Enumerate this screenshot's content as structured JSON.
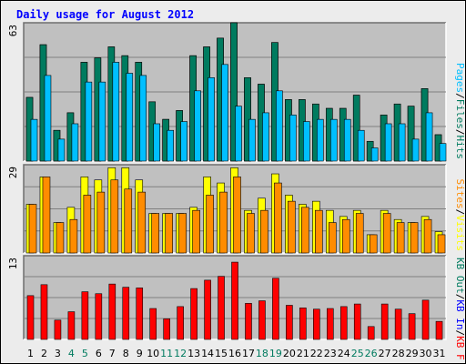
{
  "title": "Daily usage for August 2012",
  "colors": {
    "background": "#ececec",
    "plot": "#c0c0c0",
    "grid": "#808080",
    "pages": "#00bfff",
    "files": "#007b5f",
    "hits": "#007b5f",
    "visits": "#ffff00",
    "sites": "#ff8c00",
    "kb_f": "#ff0000",
    "kb_in": "#0000ff",
    "kb_out": "#007b5f",
    "title": "#0000ff",
    "weekend": "#007b5f",
    "weekday": "#000000"
  },
  "chart_data": [
    {
      "type": "bar",
      "panel": "top",
      "ymax_label": "63",
      "ylim": [
        0,
        63
      ],
      "categories": [
        "1",
        "2",
        "3",
        "4",
        "5",
        "6",
        "7",
        "8",
        "9",
        "10",
        "11",
        "12",
        "13",
        "14",
        "15",
        "16",
        "17",
        "18",
        "19",
        "20",
        "21",
        "22",
        "23",
        "24",
        "25",
        "26",
        "27",
        "28",
        "29",
        "30",
        "31"
      ],
      "weekend_days": [
        4,
        5,
        11,
        12,
        18,
        19,
        25,
        26
      ],
      "series": [
        {
          "name": "Hits",
          "values": [
            29,
            53,
            14,
            22,
            45,
            47,
            52,
            48,
            45,
            27,
            19,
            23,
            48,
            52,
            56,
            63,
            38,
            35,
            54,
            28,
            28,
            26,
            24,
            24,
            30,
            9,
            21,
            26,
            25,
            33,
            12
          ]
        },
        {
          "name": "Files",
          "values": [
            29,
            53,
            14,
            22,
            45,
            47,
            52,
            48,
            45,
            27,
            19,
            23,
            48,
            52,
            56,
            63,
            38,
            35,
            54,
            28,
            28,
            26,
            24,
            24,
            30,
            9,
            21,
            26,
            25,
            33,
            12
          ]
        },
        {
          "name": "Pages",
          "values": [
            19,
            39,
            10,
            17,
            36,
            36,
            45,
            40,
            39,
            17,
            14,
            18,
            32,
            38,
            44,
            25,
            19,
            22,
            32,
            21,
            18,
            19,
            19,
            19,
            14,
            6,
            17,
            17,
            10,
            22,
            8
          ]
        }
      ],
      "legend": [
        {
          "text": "Hits",
          "key": "hits"
        },
        {
          "text": "/",
          "key": "divider"
        },
        {
          "text": "Files",
          "key": "files"
        },
        {
          "text": "/",
          "key": "divider"
        },
        {
          "text": "Pages",
          "key": "pages"
        }
      ]
    },
    {
      "type": "bar",
      "panel": "middle",
      "ymax_label": "29",
      "ylim": [
        0,
        29
      ],
      "series": [
        {
          "name": "Visits",
          "values": [
            16,
            25,
            10,
            15,
            25,
            24,
            28,
            28,
            24,
            13,
            13,
            13,
            15,
            25,
            23,
            28,
            14,
            18,
            26,
            19,
            16,
            17,
            14,
            12,
            14,
            6,
            14,
            11,
            10,
            12,
            7
          ]
        },
        {
          "name": "Sites",
          "values": [
            16,
            25,
            10,
            11,
            19,
            20,
            24,
            21,
            20,
            13,
            13,
            13,
            14,
            19,
            20,
            25,
            13,
            14,
            23,
            17,
            15,
            14,
            10,
            11,
            13,
            6,
            13,
            10,
            10,
            11,
            6
          ]
        }
      ],
      "legend": [
        {
          "text": "Visits",
          "key": "visits"
        },
        {
          "text": "/",
          "key": "divider"
        },
        {
          "text": "Sites",
          "key": "sites"
        }
      ]
    },
    {
      "type": "bar",
      "panel": "bottom",
      "ymax_label": "13",
      "ylim": [
        0,
        13
      ],
      "series": [
        {
          "name": "KB F",
          "values": [
            6.8,
            8.5,
            3.0,
            4.3,
            7.4,
            7.1,
            8.6,
            8.1,
            8.0,
            4.8,
            3.2,
            5.1,
            7.9,
            9.2,
            9.8,
            12.0,
            5.6,
            6.0,
            9.5,
            5.3,
            4.9,
            4.7,
            4.8,
            5.1,
            5.5,
            2.0,
            5.5,
            4.7,
            4.0,
            6.1,
            2.8
          ]
        }
      ],
      "legend": [
        {
          "text": "KB F",
          "key": "kb_f"
        },
        {
          "text": "/",
          "key": "divider"
        },
        {
          "text": "KB In",
          "key": "kb_in"
        },
        {
          "text": "/",
          "key": "divider"
        },
        {
          "text": "KB Out",
          "key": "kb_out"
        }
      ]
    }
  ]
}
